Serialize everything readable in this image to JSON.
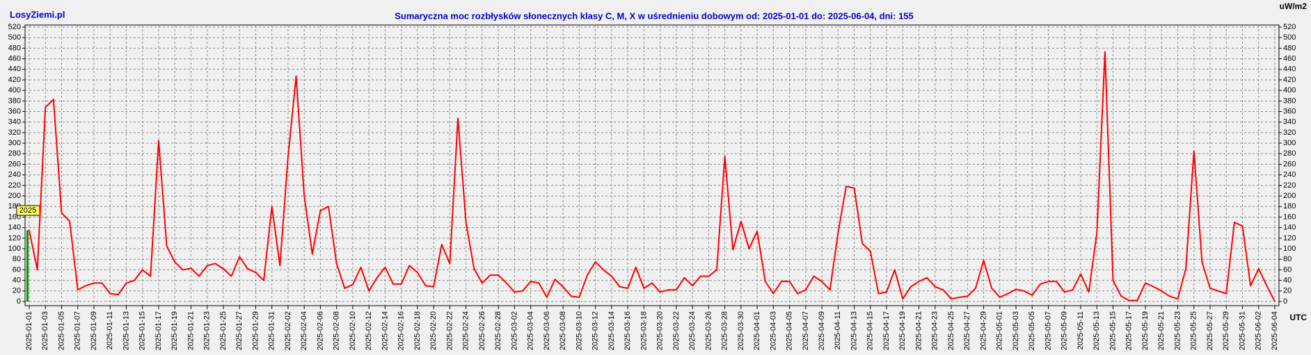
{
  "chart_data": {
    "type": "line",
    "site": "LosyZiemi.pl",
    "title": "Sumaryczna moc rozbłysków słonecznych klasy C, M, X w uśrednieniu dobowym od: 2025-01-01 do: 2025-06-04, dni: 155",
    "y_unit": "uW/m2",
    "x_unit": "UTC",
    "year_marker": "2025",
    "color": "#ff0000",
    "grid": true,
    "categories": [
      "2025-01-01",
      null,
      "2025-01-03",
      null,
      "2025-01-05",
      null,
      "2025-01-07",
      null,
      "2025-01-09",
      null,
      "2025-01-11",
      null,
      "2025-01-13",
      null,
      "2025-01-15",
      null,
      "2025-01-17",
      null,
      "2025-01-19",
      null,
      "2025-01-21",
      null,
      "2025-01-23",
      null,
      "2025-01-25",
      null,
      "2025-01-27",
      null,
      "2025-01-29",
      null,
      "2025-01-31",
      null,
      "2025-02-02",
      null,
      "2025-02-04",
      null,
      "2025-02-06",
      null,
      "2025-02-08",
      null,
      "2025-02-10",
      null,
      "2025-02-12",
      null,
      "2025-02-14",
      null,
      "2025-02-16",
      null,
      "2025-02-18",
      null,
      "2025-02-20",
      null,
      "2025-02-22",
      null,
      "2025-02-24",
      null,
      "2025-02-26",
      null,
      "2025-02-28",
      null,
      "2025-03-02",
      null,
      "2025-03-04",
      null,
      "2025-03-06",
      null,
      "2025-03-08",
      null,
      "2025-03-10",
      null,
      "2025-03-12",
      null,
      "2025-03-14",
      null,
      "2025-03-16",
      null,
      "2025-03-18",
      null,
      "2025-03-20",
      null,
      "2025-03-22",
      null,
      "2025-03-24",
      null,
      "2025-03-26",
      null,
      "2025-03-28",
      null,
      "2025-03-30",
      null,
      "2025-04-01",
      null,
      "2025-04-03",
      null,
      "2025-04-05",
      null,
      "2025-04-07",
      null,
      "2025-04-09",
      null,
      "2025-04-11",
      null,
      "2025-04-13",
      null,
      "2025-04-15",
      null,
      "2025-04-17",
      null,
      "2025-04-19",
      null,
      "2025-04-21",
      null,
      "2025-04-23",
      null,
      "2025-04-25",
      null,
      "2025-04-27",
      null,
      "2025-04-29",
      null,
      "2025-05-01",
      null,
      "2025-05-03",
      null,
      "2025-05-05",
      null,
      "2025-05-07",
      null,
      "2025-05-09",
      null,
      "2025-05-11",
      null,
      "2025-05-13",
      null,
      "2025-05-15",
      null,
      "2025-05-17",
      null,
      "2025-05-19",
      null,
      "2025-05-21",
      null,
      "2025-05-23",
      null,
      "2025-05-25",
      null,
      "2025-05-27",
      null,
      "2025-05-29",
      null,
      "2025-05-31",
      null,
      "2025-06-02",
      null,
      "2025-06-04"
    ],
    "values": [
      135,
      60,
      368,
      383,
      168,
      152,
      22,
      30,
      35,
      35,
      15,
      13,
      35,
      40,
      60,
      48,
      305,
      105,
      75,
      60,
      63,
      48,
      68,
      72,
      62,
      48,
      85,
      62,
      55,
      40,
      180,
      68,
      275,
      427,
      200,
      90,
      172,
      180,
      72,
      25,
      32,
      65,
      20,
      45,
      65,
      33,
      33,
      68,
      55,
      30,
      28,
      108,
      72,
      347,
      150,
      62,
      35,
      50,
      50,
      35,
      18,
      20,
      38,
      35,
      8,
      42,
      28,
      10,
      8,
      50,
      75,
      60,
      48,
      28,
      25,
      65,
      25,
      35,
      18,
      22,
      22,
      45,
      30,
      48,
      48,
      60,
      275,
      98,
      152,
      100,
      133,
      38,
      15,
      38,
      38,
      15,
      22,
      48,
      38,
      22,
      130,
      218,
      215,
      110,
      95,
      15,
      18,
      60,
      5,
      28,
      38,
      45,
      28,
      22,
      5,
      8,
      10,
      25,
      78,
      25,
      8,
      15,
      23,
      20,
      12,
      33,
      38,
      38,
      18,
      22,
      52,
      18,
      130,
      473,
      40,
      10,
      2,
      2,
      35,
      28,
      20,
      10,
      5,
      62,
      285,
      75,
      25,
      20,
      15,
      150,
      143,
      30,
      62,
      30,
      0
    ],
    "ylim": [
      0,
      520
    ],
    "yticks": [
      0,
      20,
      40,
      60,
      80,
      100,
      120,
      140,
      160,
      180,
      200,
      220,
      240,
      260,
      280,
      300,
      320,
      340,
      360,
      380,
      400,
      420,
      440,
      460,
      480,
      500,
      520
    ]
  }
}
